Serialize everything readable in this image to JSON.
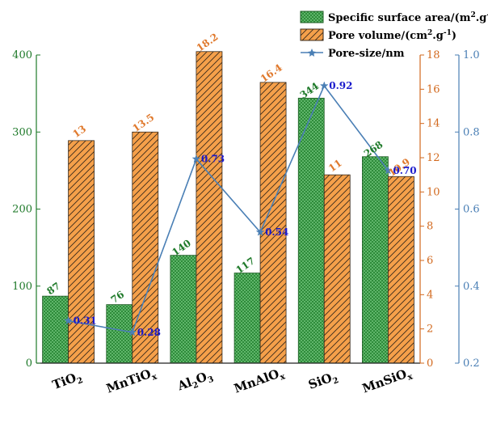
{
  "chart_data": {
    "type": "bar",
    "categories": [
      {
        "base": "TiO",
        "sub": "2",
        "tail": ""
      },
      {
        "base": "MnTiO",
        "sub": "x",
        "tail": ""
      },
      {
        "base": "Al",
        "sub": "2",
        "tail": "O",
        "sub2": "3"
      },
      {
        "base": "MnAlO",
        "sub": "x",
        "tail": ""
      },
      {
        "base": "SiO",
        "sub": "2",
        "tail": ""
      },
      {
        "base": "MnSiO",
        "sub": "x",
        "tail": ""
      }
    ],
    "series": [
      {
        "key": "ssa",
        "legend_main": "Specific surface area/(m",
        "legend_sup": "2",
        "legend_mid": ".g",
        "legend_sup2": "-1",
        "legend_end": ")",
        "values": [
          87,
          76,
          140,
          117,
          344,
          268
        ],
        "labels": [
          "87",
          "76",
          "140",
          "117",
          "344",
          "268"
        ],
        "axis": "left",
        "color": "#2e8b3a",
        "pattern": "checker"
      },
      {
        "key": "pv",
        "legend_main": "Pore volume/(cm",
        "legend_sup": "2",
        "legend_mid": ".g",
        "legend_sup2": "-1",
        "legend_end": ")",
        "values": [
          13,
          13.5,
          18.2,
          16.4,
          11,
          10.9
        ],
        "labels": [
          "13",
          "13.5",
          "18.2",
          "16.4",
          "11",
          "10.9"
        ],
        "axis": "middle",
        "color": "#f5a04a",
        "pattern": "hatch"
      },
      {
        "key": "ps",
        "legend_main": "Pore-size/nm",
        "values": [
          0.31,
          0.28,
          0.73,
          0.54,
          0.92,
          0.7
        ],
        "labels": [
          "0.31",
          "0.28",
          "0.73",
          "0.54",
          "0.92",
          "0.70"
        ],
        "axis": "right",
        "color": "#4a7fb5",
        "type": "line"
      }
    ],
    "axes": {
      "left": {
        "range": [
          0,
          400
        ],
        "ticks": [
          "0",
          "100",
          "200",
          "300",
          "400"
        ],
        "color": "#1f7a2a"
      },
      "middle": {
        "range": [
          0,
          18
        ],
        "ticks": [
          "0",
          "2",
          "4",
          "6",
          "8",
          "10",
          "12",
          "14",
          "16",
          "18"
        ],
        "color": "#d2691e"
      },
      "right": {
        "range": [
          0.2,
          1.0
        ],
        "ticks": [
          "0.2",
          "0.4",
          "0.6",
          "0.8",
          "1.0"
        ],
        "color": "#4a7fb5"
      }
    },
    "grid": false,
    "legend_position": "top-right"
  }
}
